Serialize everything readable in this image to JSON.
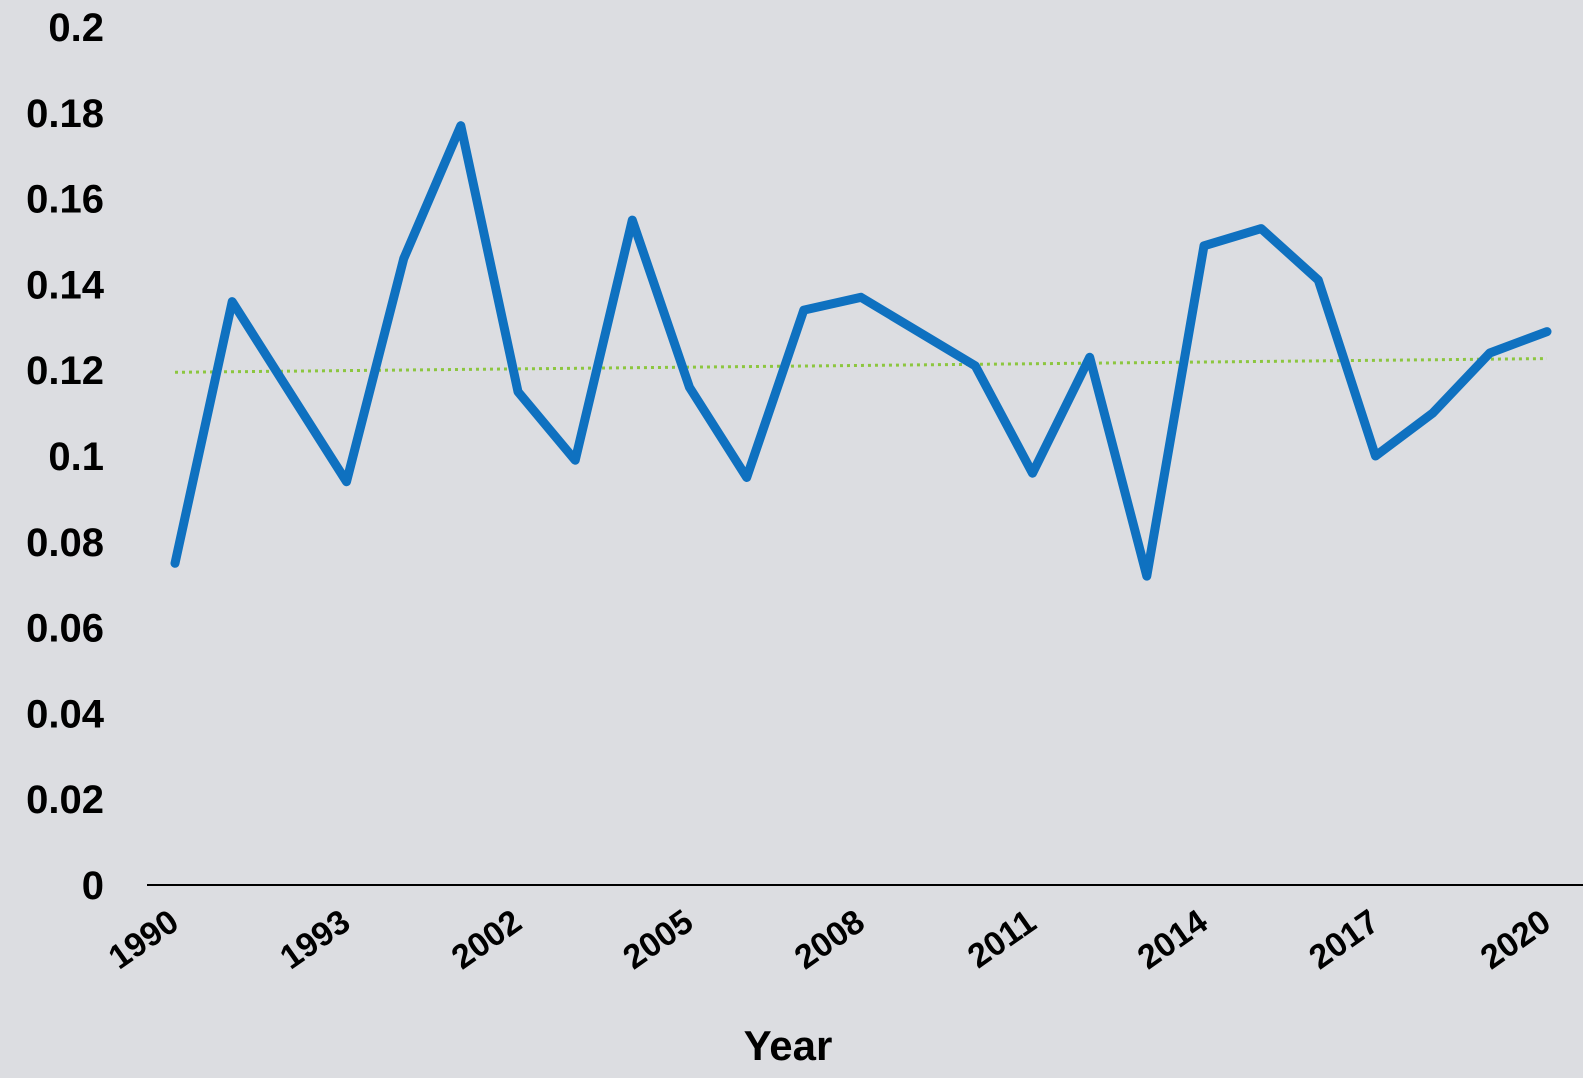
{
  "chart_data": {
    "type": "line",
    "xlabel": "Year",
    "ylabel": "",
    "ylim": [
      0,
      0.2
    ],
    "yticks": [
      "0",
      "0.02",
      "0.04",
      "0.06",
      "0.08",
      "0.1",
      "0.12",
      "0.14",
      "0.16",
      "0.18",
      "0.2"
    ],
    "x_tick_labels": [
      "1990",
      "1993",
      "2002",
      "2005",
      "2008",
      "2011",
      "2014",
      "2017",
      "2020"
    ],
    "grid": false,
    "legend": "none",
    "series": [
      {
        "color": "#0f71c0",
        "style": "solid",
        "values": [
          0.075,
          0.136,
          0.115,
          0.094,
          0.146,
          0.177,
          0.115,
          0.099,
          0.155,
          0.116,
          0.095,
          0.134,
          0.137,
          0.129,
          0.121,
          0.096,
          0.123,
          0.072,
          0.149,
          0.153,
          0.141,
          0.1,
          0.11,
          0.124,
          0.129
        ]
      },
      {
        "color": "#8cc63f",
        "style": "dotted",
        "trendline": true,
        "values": [
          0.1195,
          0.1227
        ]
      }
    ]
  }
}
